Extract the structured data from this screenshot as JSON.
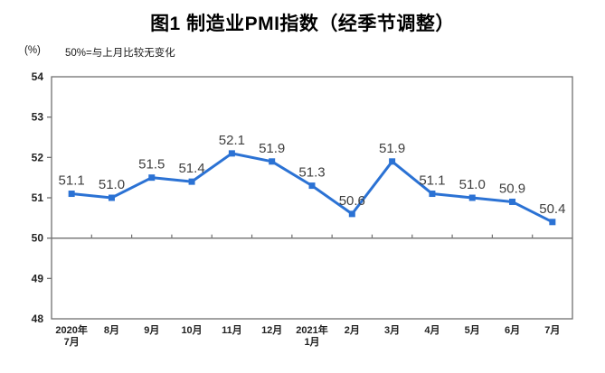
{
  "page": {
    "title": "图1 制造业PMI指数（经季节调整）"
  },
  "chart_data": {
    "type": "line",
    "title": "图1 制造业PMI指数（经季节调整）",
    "unit_label": "(%)",
    "note": "50%=与上月比较无变化",
    "categories": [
      "2020年\n7月",
      "8月",
      "9月",
      "10月",
      "11月",
      "12月",
      "2021年\n1月",
      "2月",
      "3月",
      "4月",
      "5月",
      "6月",
      "7月"
    ],
    "values": [
      51.1,
      51.0,
      51.5,
      51.4,
      52.1,
      51.9,
      51.3,
      50.6,
      51.9,
      51.1,
      51.0,
      50.9,
      50.4
    ],
    "point_labels": [
      "51.1",
      "51.0",
      "51.5",
      "51.4",
      "52.1",
      "51.9",
      "51.3",
      "50.6",
      "51.9",
      "51.1",
      "51.0",
      "50.9",
      "50.4"
    ],
    "ylim": [
      48,
      54
    ],
    "y_ticks": [
      48,
      49,
      50,
      51,
      52,
      53,
      54
    ],
    "reference_line": 50,
    "gridlines": false,
    "legend": "none",
    "marker": "square",
    "colors": {
      "line": "#2B72D4",
      "marker": "#2B72D4",
      "data_label": "#3F3F3F",
      "axis": "#707070",
      "tick_label": "#222222",
      "x_label": "#222222"
    }
  }
}
